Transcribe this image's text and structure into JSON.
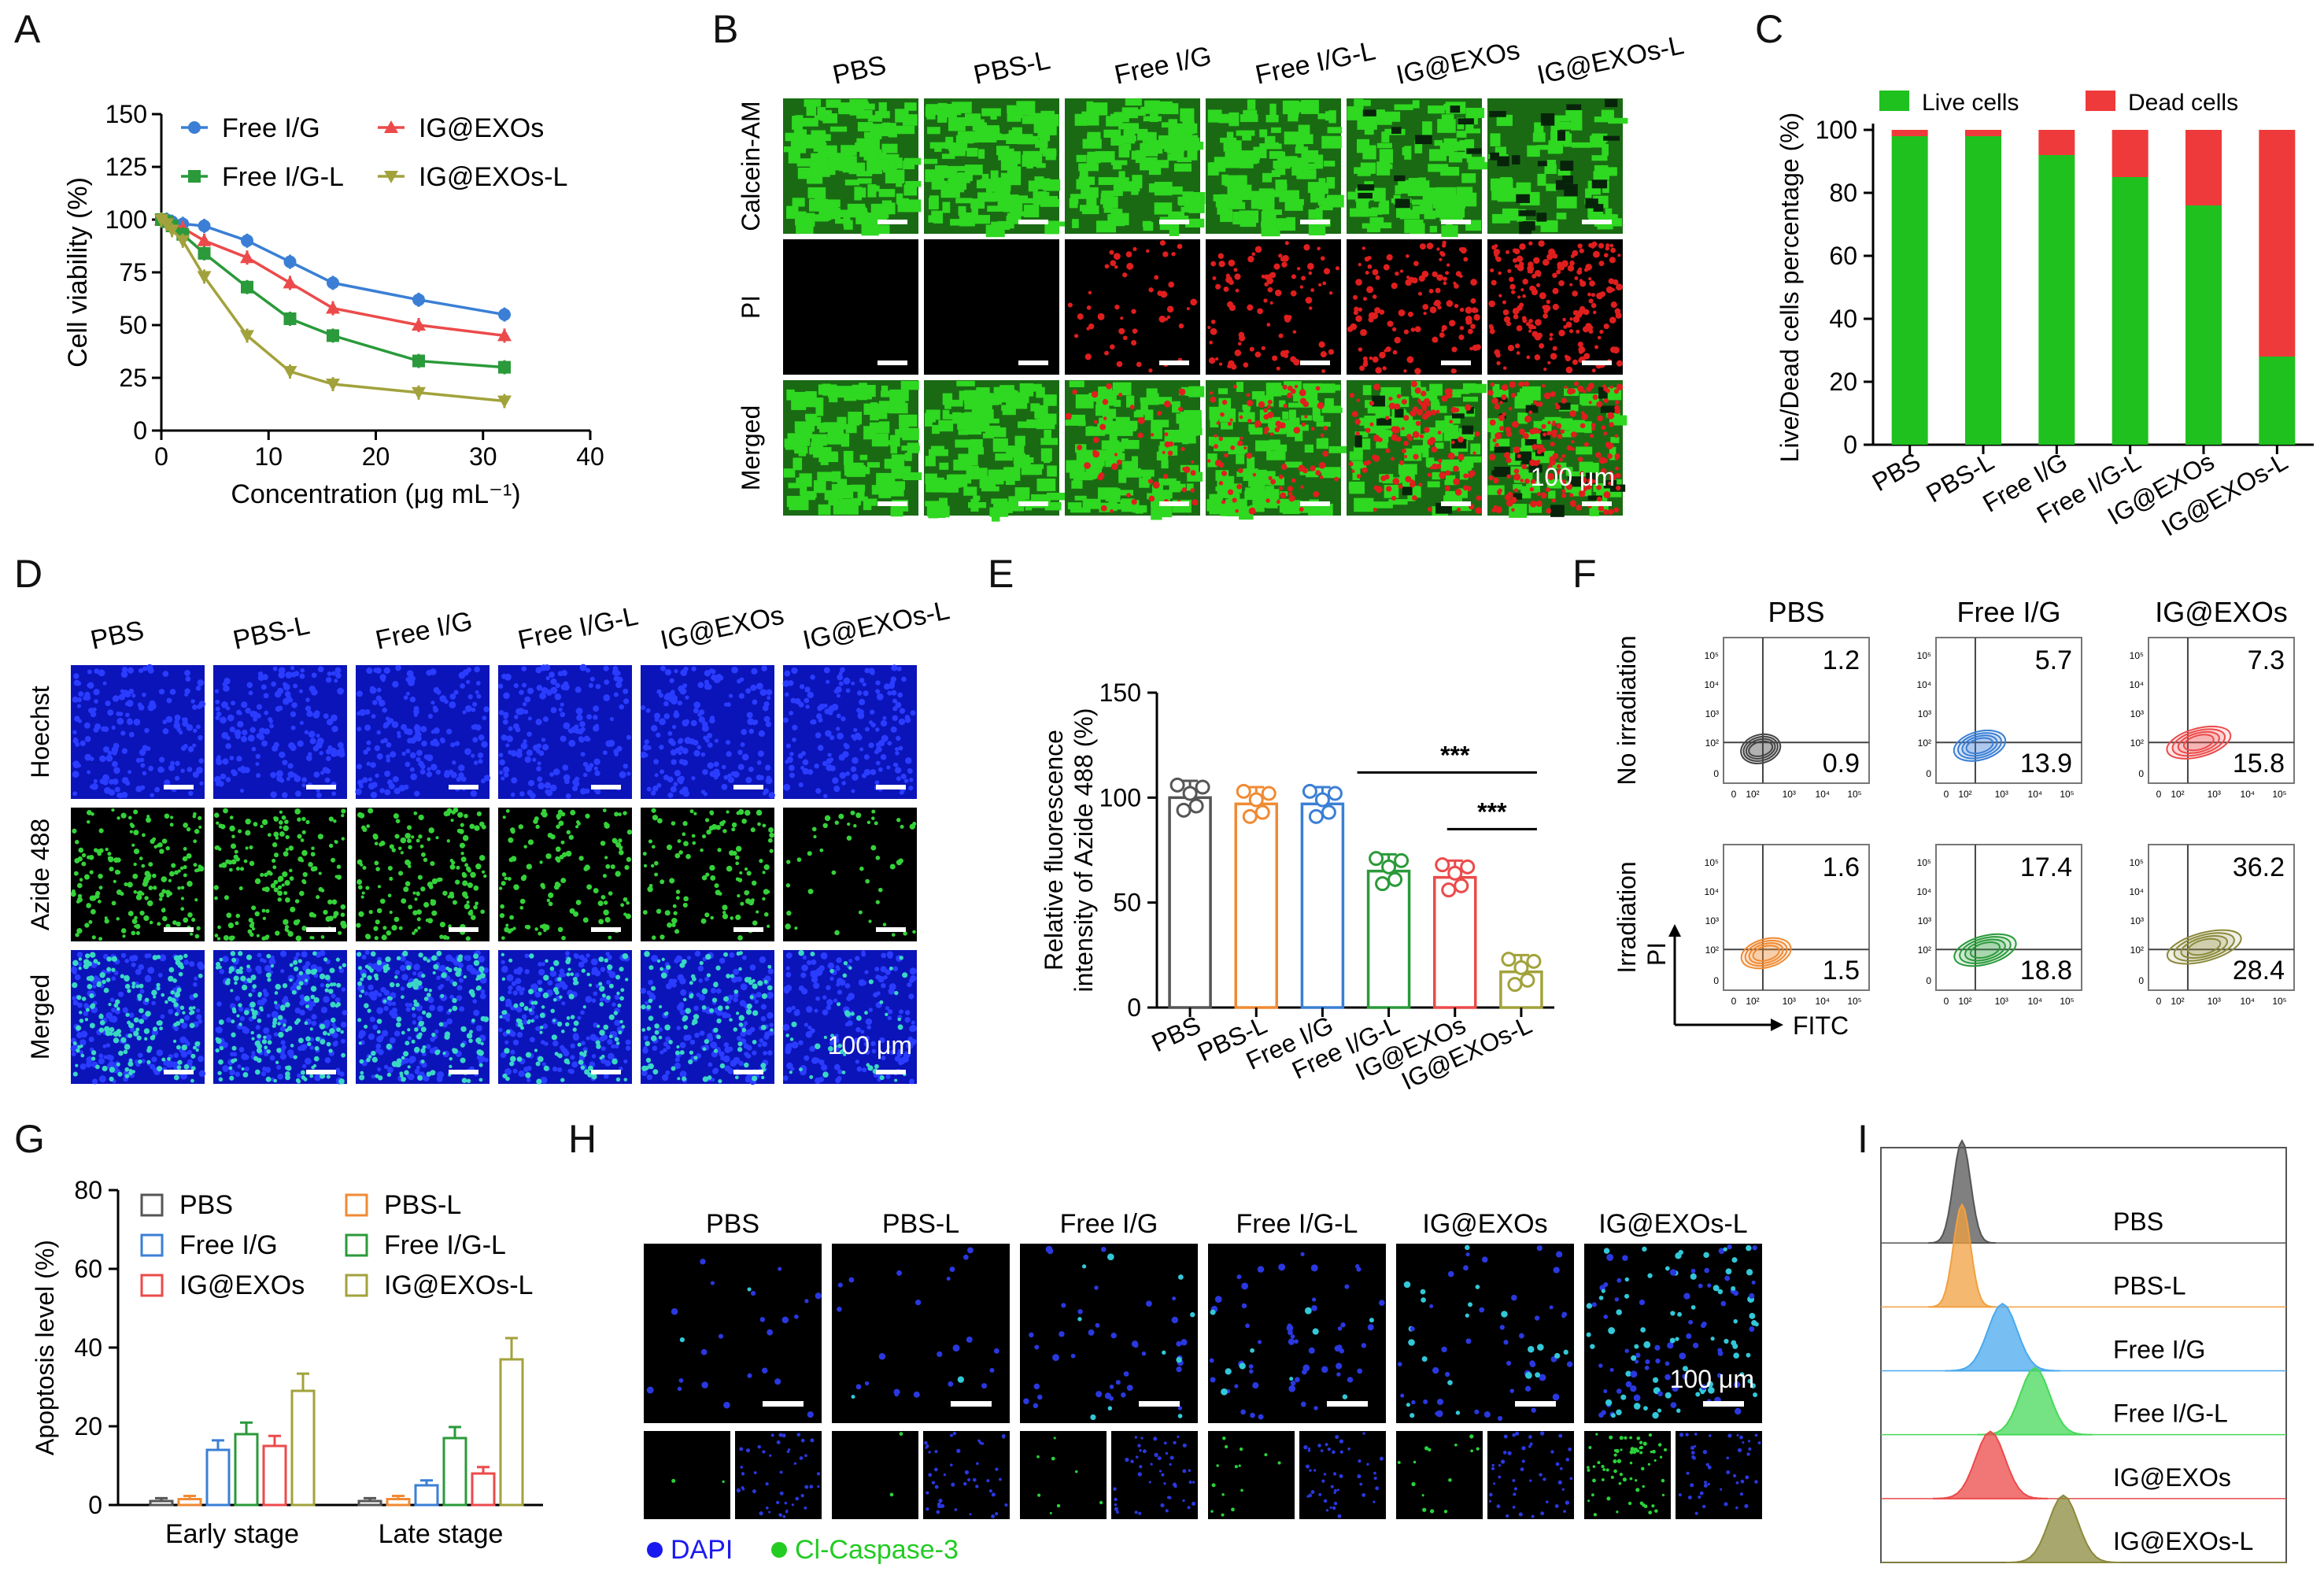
{
  "panel_letters": {
    "A": "A",
    "B": "B",
    "C": "C",
    "D": "D",
    "E": "E",
    "F": "F",
    "G": "G",
    "H": "H",
    "I": "I"
  },
  "colors": {
    "blue": "#3a7fd5",
    "red": "#ec4a4a",
    "green": "#2a9a3a",
    "olive": "#a2a23c",
    "gray": "#555555",
    "orange": "#f08a33",
    "live": "#1fc11f",
    "dead": "#ee3a3a",
    "hist_orange": "#f2a040",
    "hist_blue": "#4aa8ee",
    "hist_green": "#47d85a",
    "hist_olive": "#8b8a3c"
  },
  "chart_data": [
    {
      "id": "A",
      "type": "scatter",
      "xlabel": "Concentration (μg mL⁻¹)",
      "ylabel": "Cell viability (%)",
      "xlim": [
        0,
        40
      ],
      "ylim": [
        0,
        150
      ],
      "xticks": [
        0,
        10,
        20,
        30,
        40
      ],
      "yticks": [
        0,
        25,
        50,
        75,
        100,
        125,
        150
      ],
      "x": [
        0,
        0.5,
        1,
        2,
        4,
        8,
        12,
        16,
        24,
        32
      ],
      "series": [
        {
          "name": "Free I/G",
          "values": [
            100,
            100,
            99,
            98,
            97,
            90,
            80,
            70,
            62,
            55
          ]
        },
        {
          "name": "IG@EXOs",
          "values": [
            100,
            99,
            98,
            96,
            90,
            82,
            70,
            58,
            50,
            45
          ]
        },
        {
          "name": "Free I/G-L",
          "values": [
            100,
            99,
            97,
            93,
            84,
            68,
            53,
            45,
            33,
            30
          ]
        },
        {
          "name": "IG@EXOs-L",
          "values": [
            100,
            98,
            95,
            90,
            73,
            45,
            28,
            22,
            18,
            14
          ]
        }
      ]
    },
    {
      "id": "C",
      "type": "bar",
      "ylabel": "Live/Dead cells percentage (%)",
      "ylim": [
        0,
        100
      ],
      "yticks": [
        0,
        20,
        40,
        60,
        80,
        100
      ],
      "categories": [
        "PBS",
        "PBS-L",
        "Free I/G",
        "Free I/G-L",
        "IG@EXOs",
        "IG@EXOs-L"
      ],
      "series": [
        {
          "name": "Live cells",
          "values": [
            98,
            98,
            92,
            85,
            76,
            28
          ]
        },
        {
          "name": "Dead cells",
          "values": [
            2,
            2,
            8,
            15,
            24,
            72
          ]
        }
      ]
    },
    {
      "id": "E",
      "type": "bar",
      "ylabel": "Relative fluorescence intensity of Azide 488 (%)",
      "ylim": [
        0,
        150
      ],
      "yticks": [
        0,
        50,
        100,
        150
      ],
      "categories": [
        "PBS",
        "PBS-L",
        "Free I/G",
        "Free I/G-L",
        "IG@EXOs",
        "IG@EXOs-L"
      ],
      "values": [
        100,
        97,
        97,
        65,
        62,
        17
      ],
      "significance": [
        "***",
        "***"
      ]
    },
    {
      "id": "G",
      "type": "bar",
      "ylabel": "Apoptosis level (%)",
      "ylim": [
        0,
        80
      ],
      "yticks": [
        0,
        20,
        40,
        60,
        80
      ],
      "categories": [
        "Early stage",
        "Late stage"
      ],
      "series": [
        {
          "name": "PBS",
          "values": [
            1,
            1
          ]
        },
        {
          "name": "PBS-L",
          "values": [
            1.5,
            1.5
          ]
        },
        {
          "name": "Free I/G",
          "values": [
            14,
            5
          ]
        },
        {
          "name": "Free I/G-L",
          "values": [
            18,
            17
          ]
        },
        {
          "name": "IG@EXOs",
          "values": [
            15,
            8
          ]
        },
        {
          "name": "IG@EXOs-L",
          "values": [
            29,
            37
          ]
        }
      ]
    },
    {
      "id": "I",
      "type": "area",
      "series": [
        {
          "name": "PBS",
          "peak": 0.2
        },
        {
          "name": "PBS-L",
          "peak": 0.2
        },
        {
          "name": "Free I/G",
          "peak": 0.3
        },
        {
          "name": "Free I/G-L",
          "peak": 0.38
        },
        {
          "name": "IG@EXOs",
          "peak": 0.27
        },
        {
          "name": "IG@EXOs-L",
          "peak": 0.45
        }
      ]
    }
  ],
  "panelB": {
    "columns": [
      "PBS",
      "PBS-L",
      "Free I/G",
      "Free I/G-L",
      "IG@EXOs",
      "IG@EXOs-L"
    ],
    "rows": [
      "Calcein-AM",
      "PI",
      "Merged"
    ],
    "red_density": [
      0.0,
      0.0,
      0.25,
      0.45,
      0.6,
      0.95
    ],
    "green_density": [
      0.95,
      0.95,
      0.9,
      0.85,
      0.75,
      0.45
    ],
    "scale": "100 μm"
  },
  "panelD": {
    "columns": [
      "PBS",
      "PBS-L",
      "Free I/G",
      "Free I/G-L",
      "IG@EXOs",
      "IG@EXOs-L"
    ],
    "rows": [
      "Hoechst",
      "Azide 488",
      "Merged"
    ],
    "green_density": [
      0.95,
      0.95,
      0.9,
      0.7,
      0.65,
      0.25
    ],
    "scale": "100 μm"
  },
  "panelF": {
    "columns": [
      "PBS",
      "Free I/G",
      "IG@EXOs"
    ],
    "rows": [
      "No irradiation",
      "Irradiation"
    ],
    "values": [
      [
        {
          "ur": "1.2",
          "lr": "0.9"
        },
        {
          "ur": "5.7",
          "lr": "13.9"
        },
        {
          "ur": "7.3",
          "lr": "15.8"
        }
      ],
      [
        {
          "ur": "1.6",
          "lr": "1.5"
        },
        {
          "ur": "17.4",
          "lr": "18.8"
        },
        {
          "ur": "36.2",
          "lr": "28.4"
        }
      ]
    ],
    "colors": [
      [
        "#444444",
        "#3a7fd5",
        "#ec4a4a"
      ],
      [
        "#f08a33",
        "#2a9a3a",
        "#8b8a3c"
      ]
    ],
    "ylabel": "PI",
    "xlabel": "FITC",
    "ticks": [
      "0",
      "10²",
      "10³",
      "10⁴",
      "10⁵"
    ]
  },
  "panelH": {
    "columns": [
      "PBS",
      "PBS-L",
      "Free I/G",
      "Free I/G-L",
      "IG@EXOs",
      "IG@EXOs-L"
    ],
    "dots": [
      0.15,
      0.15,
      0.3,
      0.4,
      0.4,
      0.85
    ],
    "scale": "100 μm",
    "legend": [
      {
        "label": "DAPI",
        "color": "#1a1af0"
      },
      {
        "label": "Cl-Caspase-3",
        "color": "#22cc22"
      }
    ]
  }
}
